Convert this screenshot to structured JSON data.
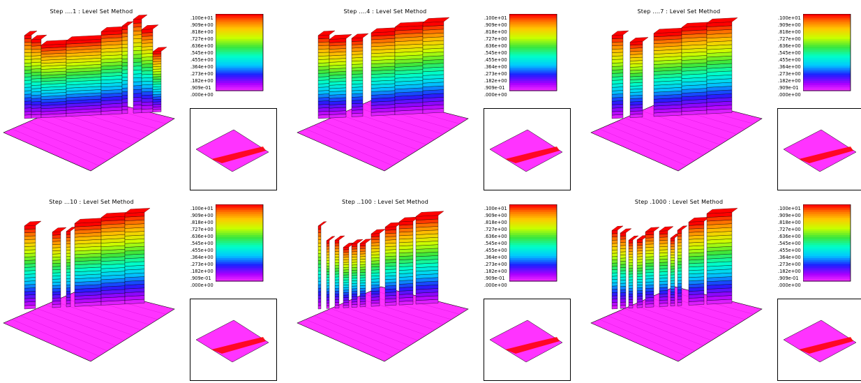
{
  "colorbar_ticks": [
    ".100e+01",
    ".909e+00",
    ".818e+00",
    ".727e+00",
    ".636e+00",
    ".545e+00",
    ".455e+00",
    ".364e+00",
    ".273e+00",
    ".182e+00",
    ".909e-01",
    ".000e+00"
  ],
  "colorbar_ticks_alt": [
    ".100e+01",
    ".909e+00",
    ".818e+00",
    ".727e+00",
    ".636e+00",
    ".545e+00",
    ".455e+00",
    ".364e+00",
    ".273e+00",
    ".182e+00",
    ".909e-01",
    ".000e+00"
  ],
  "colors": {
    "floor": "#ff33ff",
    "top": "#ff0000",
    "background": "#ffffff"
  },
  "chart_data": [
    {
      "type": "heatmap",
      "title": "Step ....1 : Level Set Method",
      "step": 1,
      "value_range": [
        0,
        1
      ],
      "surface_segments": [
        [
          0.0,
          0.05,
          0.55
        ],
        [
          0.05,
          0.12,
          0.52
        ],
        [
          0.12,
          0.3,
          0.48
        ],
        [
          0.3,
          0.55,
          0.5
        ],
        [
          0.55,
          0.7,
          0.55
        ],
        [
          0.7,
          0.74,
          0.58
        ],
        [
          0.78,
          0.84,
          0.62
        ],
        [
          0.84,
          0.92,
          0.55
        ],
        [
          0.92,
          0.98,
          0.4
        ]
      ],
      "top_view_band": [
        [
          0.3,
          0.85
        ],
        [
          0.95,
          0.4
        ]
      ]
    },
    {
      "type": "heatmap",
      "title": "Step ....4 : Level Set Method",
      "step": 4,
      "value_range": [
        0,
        1
      ],
      "surface_segments": [
        [
          0.0,
          0.08,
          0.55
        ],
        [
          0.08,
          0.2,
          0.52
        ],
        [
          0.24,
          0.32,
          0.52
        ],
        [
          0.38,
          0.55,
          0.55
        ],
        [
          0.55,
          0.75,
          0.58
        ],
        [
          0.75,
          0.9,
          0.6
        ]
      ],
      "top_view_band": [
        [
          0.3,
          0.85
        ],
        [
          0.95,
          0.4
        ]
      ]
    },
    {
      "type": "heatmap",
      "title": "Step ....7 : Level Set Method",
      "step": 7,
      "value_range": [
        0,
        1
      ],
      "surface_segments": [
        [
          0.0,
          0.08,
          0.55
        ],
        [
          0.13,
          0.22,
          0.5
        ],
        [
          0.3,
          0.5,
          0.55
        ],
        [
          0.5,
          0.68,
          0.58
        ],
        [
          0.68,
          0.86,
          0.6
        ]
      ],
      "top_view_band": [
        [
          0.3,
          0.85
        ],
        [
          0.95,
          0.4
        ]
      ]
    },
    {
      "type": "heatmap",
      "title": "Step ...10 : Level Set Method",
      "step": 10,
      "value_range": [
        0,
        1
      ],
      "surface_segments": [
        [
          0.0,
          0.08,
          0.55
        ],
        [
          0.2,
          0.26,
          0.5
        ],
        [
          0.3,
          0.33,
          0.5
        ],
        [
          0.36,
          0.55,
          0.55
        ],
        [
          0.55,
          0.72,
          0.58
        ],
        [
          0.72,
          0.86,
          0.6
        ]
      ],
      "top_view_band": [
        [
          0.3,
          0.85
        ],
        [
          0.95,
          0.4
        ]
      ]
    },
    {
      "type": "heatmap",
      "title": "Step ..100 : Level Set Method",
      "step": 100,
      "value_range": [
        0,
        1
      ],
      "surface_segments": [
        [
          0.0,
          0.02,
          0.55
        ],
        [
          0.06,
          0.08,
          0.45
        ],
        [
          0.12,
          0.15,
          0.45
        ],
        [
          0.18,
          0.22,
          0.4
        ],
        [
          0.24,
          0.28,
          0.42
        ],
        [
          0.3,
          0.34,
          0.42
        ],
        [
          0.38,
          0.44,
          0.48
        ],
        [
          0.48,
          0.56,
          0.52
        ],
        [
          0.58,
          0.68,
          0.55
        ],
        [
          0.7,
          0.86,
          0.58
        ]
      ],
      "top_view_band": [
        [
          0.3,
          0.85
        ],
        [
          0.95,
          0.4
        ]
      ]
    },
    {
      "type": "heatmap",
      "title": "Step .1000 : Level Set Method",
      "step": 1000,
      "value_range": [
        0,
        1
      ],
      "surface_segments": [
        [
          0.0,
          0.04,
          0.52
        ],
        [
          0.06,
          0.1,
          0.5
        ],
        [
          0.12,
          0.15,
          0.45
        ],
        [
          0.18,
          0.22,
          0.45
        ],
        [
          0.24,
          0.3,
          0.5
        ],
        [
          0.34,
          0.4,
          0.5
        ],
        [
          0.42,
          0.45,
          0.45
        ],
        [
          0.47,
          0.5,
          0.5
        ],
        [
          0.55,
          0.66,
          0.55
        ],
        [
          0.68,
          0.86,
          0.6
        ]
      ],
      "top_view_band": [
        [
          0.3,
          0.85
        ],
        [
          0.95,
          0.4
        ]
      ]
    }
  ]
}
